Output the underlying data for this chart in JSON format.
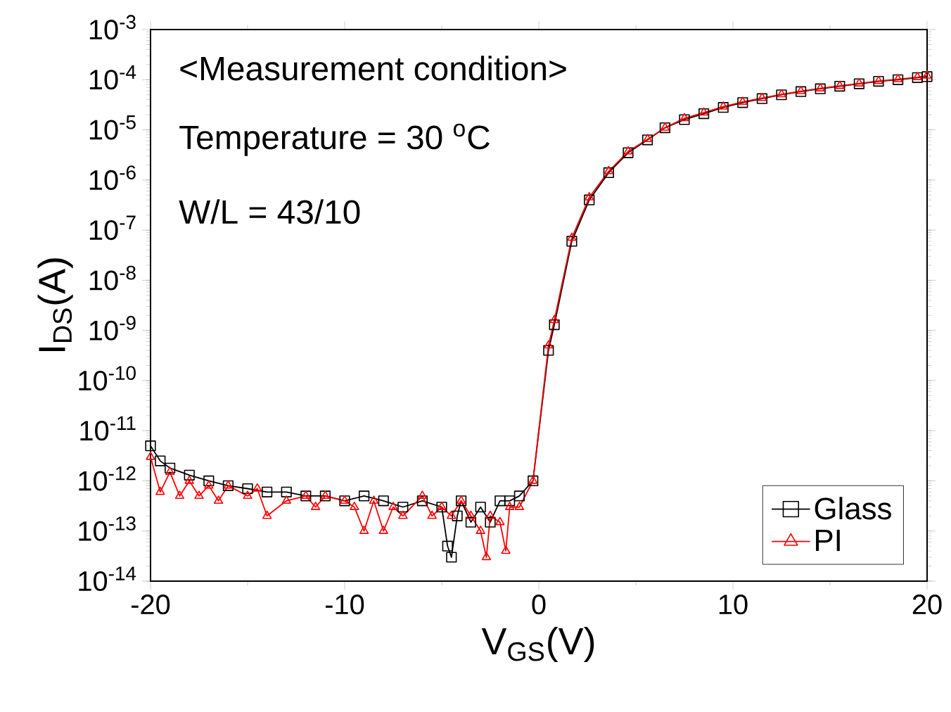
{
  "chart_data": {
    "type": "line",
    "xlabel": "V$_{GS}$(V)",
    "ylabel": "I$_{DS}$(A)",
    "annotations": [
      "<Measurement condition>",
      "Temperature = 30 $^{o}$C",
      "W/L = 43/10"
    ],
    "log": "y",
    "xlim": [
      -20,
      20
    ],
    "ylim": [
      1e-14,
      0.001
    ],
    "xticks": [
      -20,
      -10,
      0,
      10,
      20
    ],
    "yticks": [
      {
        "value": 1e-14,
        "label": "10$^{-14}$"
      },
      {
        "value": 1e-13,
        "label": "10$^{-13}$"
      },
      {
        "value": 1e-12,
        "label": "10$^{-12}$"
      },
      {
        "value": 1e-11,
        "label": "10$^{-11}$"
      },
      {
        "value": 1e-10,
        "label": "10$^{-10}$"
      },
      {
        "value": 1e-09,
        "label": "10$^{-9}$"
      },
      {
        "value": 1e-08,
        "label": "10$^{-8}$"
      },
      {
        "value": 1e-07,
        "label": "10$^{-7}$"
      },
      {
        "value": 1e-06,
        "label": "10$^{-6}$"
      },
      {
        "value": 1e-05,
        "label": "10$^{-5}$"
      },
      {
        "value": 0.0001,
        "label": "10$^{-4}$"
      },
      {
        "value": 0.001,
        "label": "10$^{-3}$"
      }
    ],
    "grid": false,
    "legend": "bottom right",
    "line_style": "solid",
    "series": [
      {
        "name": "Glass",
        "color": "#000000",
        "marker": "square",
        "x": [
          -20,
          -19.5,
          -19,
          -18,
          -17,
          -16,
          -15,
          -14,
          -13,
          -12,
          -11,
          -10,
          -9,
          -8,
          -7,
          -6,
          -5,
          -4.7,
          -4.5,
          -4.2,
          -4,
          -3.5,
          -3,
          -2.5,
          -2,
          -1.5,
          -1,
          -0.3,
          0.5,
          0.8,
          1.7,
          2.6,
          3.6,
          4.6,
          5.6,
          6.5,
          7.5,
          8.5,
          9.5,
          10.5,
          11.5,
          12.5,
          13.5,
          14.5,
          15.5,
          16.5,
          17.5,
          18.5,
          19.5,
          20
        ],
        "values": [
          5e-12,
          2.5e-12,
          1.8e-12,
          1.3e-12,
          1e-12,
          8e-13,
          7e-13,
          6e-13,
          6e-13,
          5e-13,
          5e-13,
          4e-13,
          5e-13,
          4e-13,
          3e-13,
          4e-13,
          3e-13,
          5e-14,
          3e-14,
          2e-13,
          4e-13,
          1.5e-13,
          3e-13,
          1.5e-13,
          4e-13,
          4e-13,
          5e-13,
          1e-12,
          4e-10,
          1.3e-09,
          6e-08,
          4e-07,
          1.4e-06,
          3.5e-06,
          6.3e-06,
          1.1e-05,
          1.6e-05,
          2.1e-05,
          2.8e-05,
          3.5e-05,
          4.2e-05,
          5e-05,
          5.8e-05,
          6.6e-05,
          7.4e-05,
          8.3e-05,
          9.3e-05,
          0.0001,
          0.00011,
          0.000115
        ]
      },
      {
        "name": "PI",
        "color": "#ff0000",
        "marker": "triangle",
        "x": [
          -20,
          -19.5,
          -19,
          -18.5,
          -18,
          -17.5,
          -17,
          -16.5,
          -16,
          -15,
          -14.5,
          -14,
          -13,
          -12,
          -11.5,
          -11,
          -10,
          -9.5,
          -9,
          -8.5,
          -8,
          -7.5,
          -7,
          -6,
          -5.5,
          -5,
          -4.5,
          -4,
          -3.5,
          -3,
          -2.7,
          -2.5,
          -2,
          -1.7,
          -1.5,
          -1,
          -0.3,
          0.5,
          0.8,
          1.7,
          2.6,
          3.6,
          4.6,
          5.6,
          6.5,
          7.5,
          8.5,
          9.5,
          10.5,
          11.5,
          12.5,
          13.5,
          14.5,
          15.5,
          16.5,
          17.5,
          18.5,
          19.5,
          20
        ],
        "values": [
          3e-12,
          6e-13,
          1.5e-12,
          5e-13,
          1e-12,
          5e-13,
          8e-13,
          4e-13,
          8e-13,
          5e-13,
          7e-13,
          2e-13,
          4e-13,
          5e-13,
          3e-13,
          5e-13,
          4e-13,
          3e-13,
          1e-13,
          4e-13,
          1e-13,
          3e-13,
          2e-13,
          5e-13,
          2e-13,
          3e-13,
          2e-13,
          4e-13,
          2e-13,
          1e-13,
          3e-14,
          2e-13,
          1.5e-13,
          4e-14,
          3e-13,
          3e-13,
          1e-12,
          5e-10,
          1.6e-09,
          7e-08,
          4.5e-07,
          1.5e-06,
          3.7e-06,
          6.5e-06,
          1.1e-05,
          1.7e-05,
          2.2e-05,
          2.9e-05,
          3.6e-05,
          4.3e-05,
          5.1e-05,
          5.9e-05,
          6.7e-05,
          7.5e-05,
          8.4e-05,
          9.4e-05,
          0.000102,
          0.000112,
          0.00012
        ]
      }
    ]
  }
}
